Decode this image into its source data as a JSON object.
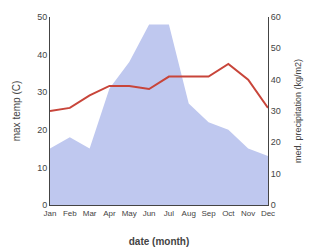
{
  "chart_data": {
    "type": "combo",
    "categories": [
      "Jan",
      "Feb",
      "Mar",
      "Apr",
      "May",
      "Jun",
      "Jul",
      "Aug",
      "Sep",
      "Oct",
      "Nov",
      "Dec"
    ],
    "series": [
      {
        "type": "area",
        "color": "#bfc8ef",
        "values": [
          15,
          18,
          15,
          31,
          38,
          48,
          48,
          27,
          22,
          20,
          15,
          13
        ]
      },
      {
        "type": "line",
        "axis": "y2",
        "color": "#c8453a",
        "values": [
          30,
          31,
          35,
          38,
          38,
          37,
          41,
          41,
          41,
          45,
          40,
          31
        ]
      }
    ],
    "xlabel": "date (month)",
    "ylabel": "max temp (C)",
    "y2label": "med. precipitation (kg/m2)",
    "ylim": [
      0,
      50
    ],
    "yticks": [
      0,
      10,
      20,
      30,
      40,
      50
    ],
    "y2lim": [
      0,
      60
    ],
    "y2ticks": [
      0,
      10,
      20,
      30,
      40,
      50,
      60
    ],
    "grid": false
  }
}
